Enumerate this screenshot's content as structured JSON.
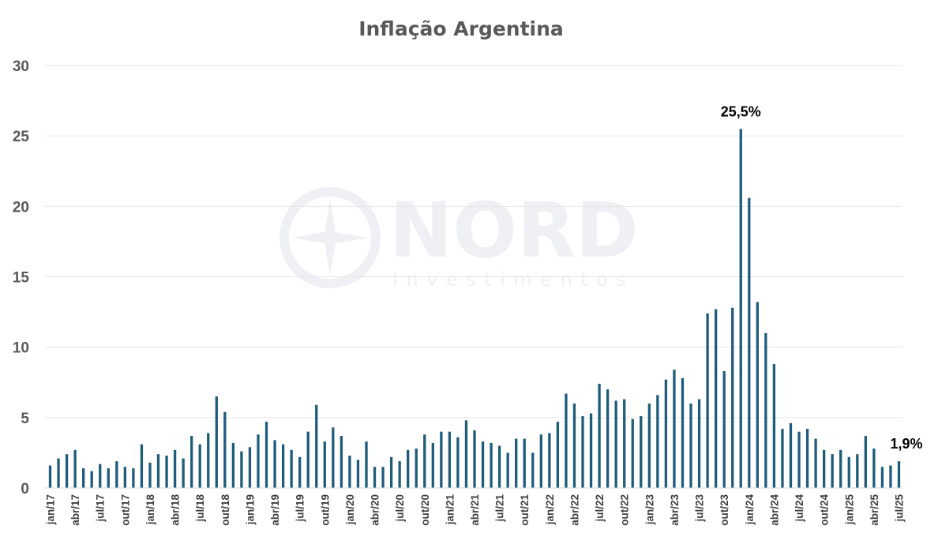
{
  "chart_data": {
    "type": "bar",
    "title": "Inflação Argentina",
    "xlabel": "",
    "ylabel": "",
    "ylim": [
      0,
      30
    ],
    "yticks": [
      0,
      5,
      10,
      15,
      20,
      25,
      30
    ],
    "grid": true,
    "bar_color": "#1F5C7A",
    "categories": [
      "jan/17",
      "fev/17",
      "mar/17",
      "abr/17",
      "mai/17",
      "jun/17",
      "jul/17",
      "ago/17",
      "set/17",
      "out/17",
      "nov/17",
      "dez/17",
      "jan/18",
      "fev/18",
      "mar/18",
      "abr/18",
      "mai/18",
      "jun/18",
      "jul/18",
      "ago/18",
      "set/18",
      "out/18",
      "nov/18",
      "dez/18",
      "jan/19",
      "fev/19",
      "mar/19",
      "abr/19",
      "mai/19",
      "jun/19",
      "jul/19",
      "ago/19",
      "set/19",
      "out/19",
      "nov/19",
      "dez/19",
      "jan/20",
      "fev/20",
      "mar/20",
      "abr/20",
      "mai/20",
      "jun/20",
      "jul/20",
      "ago/20",
      "set/20",
      "out/20",
      "nov/20",
      "dez/20",
      "jan/21",
      "fev/21",
      "mar/21",
      "abr/21",
      "mai/21",
      "jun/21",
      "jul/21",
      "ago/21",
      "set/21",
      "out/21",
      "nov/21",
      "dez/21",
      "jan/22",
      "fev/22",
      "mar/22",
      "abr/22",
      "mai/22",
      "jun/22",
      "jul/22",
      "ago/22",
      "set/22",
      "out/22",
      "nov/22",
      "dez/22",
      "jan/23",
      "fev/23",
      "mar/23",
      "abr/23",
      "mai/23",
      "jun/23",
      "jul/23",
      "ago/23",
      "set/23",
      "out/23",
      "nov/23",
      "dez/23",
      "jan/24",
      "fev/24",
      "mar/24",
      "abr/24",
      "mai/24",
      "jun/24",
      "jul/24",
      "ago/24",
      "set/24",
      "out/24",
      "nov/24",
      "dez/24",
      "jan/25",
      "fev/25",
      "mar/25",
      "abr/25",
      "mai/25",
      "jun/25",
      "jul/25"
    ],
    "xtick_labels": [
      "jan/17",
      "abr/17",
      "jul/17",
      "out/17",
      "jan/18",
      "abr/18",
      "jul/18",
      "out/18",
      "jan/19",
      "abr/19",
      "jul/19",
      "out/19",
      "jan/20",
      "abr/20",
      "jul/20",
      "out/20",
      "jan/21",
      "abr/21",
      "jul/21",
      "out/21",
      "jan/22",
      "abr/22",
      "jul/22",
      "out/22",
      "jan/23",
      "abr/23",
      "jul/23",
      "out/23",
      "jan/24",
      "abr/24",
      "jul/24",
      "out/24",
      "jan/25",
      "abr/25",
      "jul/25"
    ],
    "values": [
      1.6,
      2.1,
      2.4,
      2.7,
      1.4,
      1.2,
      1.7,
      1.4,
      1.9,
      1.5,
      1.4,
      3.1,
      1.8,
      2.4,
      2.3,
      2.7,
      2.1,
      3.7,
      3.1,
      3.9,
      6.5,
      5.4,
      3.2,
      2.6,
      2.9,
      3.8,
      4.7,
      3.4,
      3.1,
      2.7,
      2.2,
      4.0,
      5.9,
      3.3,
      4.3,
      3.7,
      2.3,
      2.0,
      3.3,
      1.5,
      1.5,
      2.2,
      1.9,
      2.7,
      2.8,
      3.8,
      3.2,
      4.0,
      4.0,
      3.6,
      4.8,
      4.1,
      3.3,
      3.2,
      3.0,
      2.5,
      3.5,
      3.5,
      2.5,
      3.8,
      3.9,
      4.7,
      6.7,
      6.0,
      5.1,
      5.3,
      7.4,
      7.0,
      6.2,
      6.3,
      4.9,
      5.1,
      6.0,
      6.6,
      7.7,
      8.4,
      7.8,
      6.0,
      6.3,
      12.4,
      12.7,
      8.3,
      12.8,
      25.5,
      20.6,
      13.2,
      11.0,
      8.8,
      4.2,
      4.6,
      4.0,
      4.2,
      3.5,
      2.7,
      2.4,
      2.7,
      2.2,
      2.4,
      3.7,
      2.8,
      1.5,
      1.6,
      1.9
    ],
    "annotations": [
      {
        "category": "dez/23",
        "text": "25,5%"
      },
      {
        "category": "jul/25",
        "text": "1,9%"
      }
    ]
  },
  "watermark": {
    "brand": "NORD",
    "sub": "Investimentos",
    "color": "#EEF0F3"
  }
}
